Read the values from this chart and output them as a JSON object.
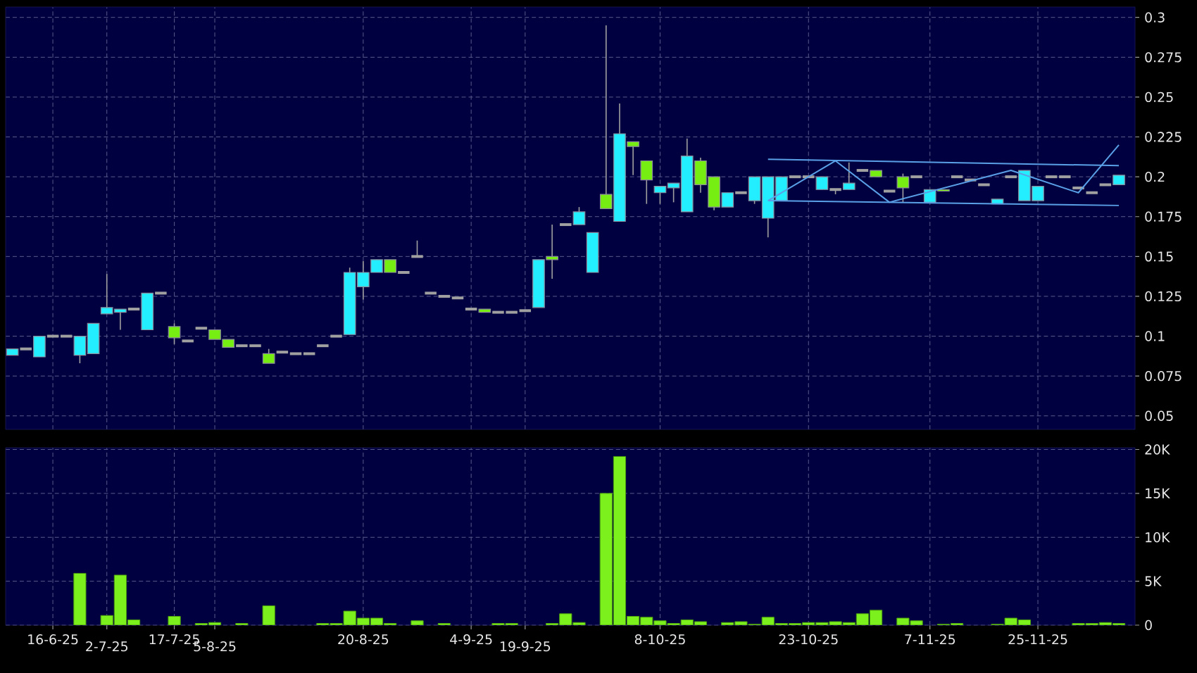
{
  "chart_data": [
    {
      "type": "candlestick",
      "categories": [
        null,
        null,
        null,
        null,
        null,
        null,
        null,
        null,
        null,
        null,
        null,
        null,
        null,
        null,
        null,
        null,
        null,
        null,
        null,
        null,
        null,
        null,
        null,
        null,
        null,
        null,
        null,
        null,
        null,
        null,
        null,
        null,
        null,
        null,
        null,
        null,
        null,
        null,
        null,
        null,
        null,
        null,
        null,
        null,
        null,
        null,
        null,
        null,
        null,
        null,
        null,
        null,
        null,
        null,
        null,
        null,
        null,
        null,
        null,
        null,
        null,
        null,
        null,
        null,
        null,
        null,
        null,
        null,
        null,
        null,
        null,
        null,
        null,
        null,
        null,
        null,
        null,
        null,
        null,
        null,
        null,
        null,
        null
      ],
      "ohlc": [
        [
          0.088,
          0.092,
          0.088,
          0.092
        ],
        [
          0.092,
          0.092,
          0.092,
          0.092
        ],
        [
          0.087,
          0.1,
          0.087,
          0.1
        ],
        [
          0.1,
          0.1,
          0.1,
          0.1
        ],
        [
          0.1,
          0.1,
          0.1,
          0.1
        ],
        [
          0.088,
          0.1,
          0.083,
          0.1
        ],
        [
          0.089,
          0.108,
          0.089,
          0.108
        ],
        [
          0.114,
          0.139,
          0.114,
          0.118
        ],
        [
          0.115,
          0.117,
          0.104,
          0.117
        ],
        [
          0.117,
          0.117,
          0.117,
          0.117
        ],
        [
          0.104,
          0.127,
          0.104,
          0.127
        ],
        [
          0.127,
          0.127,
          0.127,
          0.127
        ],
        [
          0.106,
          0.108,
          0.095,
          0.099
        ],
        [
          0.097,
          0.097,
          0.097,
          0.097
        ],
        [
          0.105,
          0.105,
          0.105,
          0.105
        ],
        [
          0.104,
          0.104,
          0.098,
          0.098
        ],
        [
          0.098,
          0.098,
          0.093,
          0.093
        ],
        [
          0.094,
          0.094,
          0.094,
          0.094
        ],
        [
          0.094,
          0.094,
          0.094,
          0.094
        ],
        [
          0.089,
          0.092,
          0.083,
          0.083
        ],
        [
          0.09,
          0.09,
          0.09,
          0.09
        ],
        [
          0.089,
          0.089,
          0.089,
          0.089
        ],
        [
          0.089,
          0.089,
          0.089,
          0.089
        ],
        [
          0.094,
          0.094,
          0.094,
          0.094
        ],
        [
          0.1,
          0.1,
          0.1,
          0.1
        ],
        [
          0.101,
          0.143,
          0.101,
          0.14
        ],
        [
          0.131,
          0.147,
          0.123,
          0.14
        ],
        [
          0.14,
          0.148,
          0.14,
          0.148
        ],
        [
          0.148,
          0.148,
          0.14,
          0.14
        ],
        [
          0.14,
          0.14,
          0.14,
          0.14
        ],
        [
          0.15,
          0.16,
          0.15,
          0.15
        ],
        [
          0.127,
          0.127,
          0.127,
          0.127
        ],
        [
          0.125,
          0.125,
          0.125,
          0.125
        ],
        [
          0.124,
          0.124,
          0.124,
          0.124
        ],
        [
          0.117,
          0.117,
          0.117,
          0.117
        ],
        [
          0.117,
          0.117,
          0.115,
          0.115
        ],
        [
          0.115,
          0.115,
          0.115,
          0.115
        ],
        [
          0.115,
          0.115,
          0.115,
          0.115
        ],
        [
          0.116,
          0.116,
          0.116,
          0.116
        ],
        [
          0.118,
          0.148,
          0.118,
          0.148
        ],
        [
          0.15,
          0.17,
          0.136,
          0.148
        ],
        [
          0.17,
          0.17,
          0.17,
          0.17
        ],
        [
          0.17,
          0.181,
          0.17,
          0.178
        ],
        [
          0.14,
          0.165,
          0.14,
          0.165
        ],
        [
          0.189,
          0.295,
          0.18,
          0.18
        ],
        [
          0.172,
          0.246,
          0.172,
          0.227
        ],
        [
          0.222,
          0.222,
          0.201,
          0.219
        ],
        [
          0.21,
          0.21,
          0.183,
          0.198
        ],
        [
          0.19,
          0.194,
          0.183,
          0.194
        ],
        [
          0.193,
          0.196,
          0.184,
          0.196
        ],
        [
          0.178,
          0.224,
          0.178,
          0.213
        ],
        [
          0.21,
          0.212,
          0.19,
          0.195
        ],
        [
          0.2,
          0.2,
          0.179,
          0.181
        ],
        [
          0.181,
          0.19,
          0.181,
          0.19
        ],
        [
          0.19,
          0.19,
          0.19,
          0.19
        ],
        [
          0.185,
          0.2,
          0.183,
          0.2
        ],
        [
          0.174,
          0.2,
          0.162,
          0.2
        ],
        [
          0.185,
          0.2,
          0.185,
          0.2
        ],
        [
          0.2,
          0.2,
          0.2,
          0.2
        ],
        [
          0.2,
          0.2,
          0.2,
          0.2
        ],
        [
          0.192,
          0.2,
          0.192,
          0.2
        ],
        [
          0.192,
          0.192,
          0.189,
          0.192
        ],
        [
          0.192,
          0.209,
          0.192,
          0.196
        ],
        [
          0.204,
          0.204,
          0.204,
          0.204
        ],
        [
          0.204,
          0.204,
          0.2,
          0.2
        ],
        [
          0.191,
          0.191,
          0.191,
          0.191
        ],
        [
          0.2,
          0.202,
          0.184,
          0.193
        ],
        [
          0.2,
          0.2,
          0.2,
          0.2
        ],
        [
          0.184,
          0.192,
          0.184,
          0.192
        ],
        [
          0.192,
          0.192,
          0.191,
          0.191
        ],
        [
          0.2,
          0.2,
          0.2,
          0.2
        ],
        [
          0.198,
          0.198,
          0.198,
          0.198
        ],
        [
          0.195,
          0.195,
          0.195,
          0.195
        ],
        [
          0.183,
          0.186,
          0.183,
          0.186
        ],
        [
          0.2,
          0.2,
          0.2,
          0.2
        ],
        [
          0.185,
          0.204,
          0.185,
          0.204
        ],
        [
          0.185,
          0.194,
          0.185,
          0.194
        ],
        [
          0.2,
          0.2,
          0.2,
          0.2
        ],
        [
          0.2,
          0.2,
          0.2,
          0.2
        ],
        [
          0.193,
          0.193,
          0.193,
          0.193
        ],
        [
          0.19,
          0.19,
          0.19,
          0.19
        ],
        [
          0.195,
          0.195,
          0.195,
          0.195
        ],
        [
          0.195,
          0.201,
          0.195,
          0.201
        ]
      ],
      "colors": [
        "#22eeff",
        "#a0a0a0",
        "#22eeff",
        "#a0a0a0",
        "#a0a0a0",
        "#22eeff",
        "#22eeff",
        "#22eeff",
        "#22eeff",
        "#a0a0a0",
        "#22eeff",
        "#a0a0a0",
        "#77ee11",
        "#a0a0a0",
        "#a0a0a0",
        "#77ee11",
        "#77ee11",
        "#a0a0a0",
        "#a0a0a0",
        "#77ee11",
        "#a0a0a0",
        "#a0a0a0",
        "#a0a0a0",
        "#a0a0a0",
        "#a0a0a0",
        "#22eeff",
        "#22eeff",
        "#22eeff",
        "#77ee11",
        "#a0a0a0",
        "#a0a0a0",
        "#a0a0a0",
        "#a0a0a0",
        "#a0a0a0",
        "#a0a0a0",
        "#77ee11",
        "#a0a0a0",
        "#a0a0a0",
        "#a0a0a0",
        "#22eeff",
        "#77ee11",
        "#a0a0a0",
        "#22eeff",
        "#22eeff",
        "#77ee11",
        "#22eeff",
        "#77ee11",
        "#77ee11",
        "#22eeff",
        "#22eeff",
        "#22eeff",
        "#77ee11",
        "#77ee11",
        "#22eeff",
        "#a0a0a0",
        "#22eeff",
        "#22eeff",
        "#22eeff",
        "#a0a0a0",
        "#a0a0a0",
        "#22eeff",
        "#a0a0a0",
        "#22eeff",
        "#a0a0a0",
        "#77ee11",
        "#a0a0a0",
        "#77ee11",
        "#a0a0a0",
        "#22eeff",
        "#77ee11",
        "#a0a0a0",
        "#a0a0a0",
        "#a0a0a0",
        "#22eeff",
        "#a0a0a0",
        "#22eeff",
        "#22eeff",
        "#a0a0a0",
        "#a0a0a0",
        "#a0a0a0",
        "#a0a0a0",
        "#a0a0a0",
        "#22eeff"
      ],
      "series": [
        {
          "type": "line",
          "color": "#5aa0e6",
          "values": [
            null,
            null,
            null,
            null,
            null,
            null,
            null,
            null,
            null,
            null,
            null,
            null,
            null,
            null,
            null,
            null,
            null,
            null,
            null,
            null,
            null,
            null,
            null,
            null,
            null,
            null,
            null,
            null,
            null,
            null,
            null,
            null,
            null,
            null,
            null,
            null,
            null,
            null,
            null,
            null,
            null,
            null,
            null,
            null,
            null,
            null,
            null,
            null,
            null,
            null,
            null,
            null,
            null,
            null,
            null,
            null,
            0.211,
            null,
            null,
            null,
            null,
            null,
            null,
            null,
            null,
            null,
            null,
            null,
            null,
            null,
            null,
            null,
            null,
            null,
            null,
            null,
            null,
            null,
            null,
            null,
            null,
            null,
            0.207
          ]
        },
        {
          "type": "line",
          "color": "#5aa0e6",
          "values": [
            null,
            null,
            null,
            null,
            null,
            null,
            null,
            null,
            null,
            null,
            null,
            null,
            null,
            null,
            null,
            null,
            null,
            null,
            null,
            null,
            null,
            null,
            null,
            null,
            null,
            null,
            null,
            null,
            null,
            null,
            null,
            null,
            null,
            null,
            null,
            null,
            null,
            null,
            null,
            null,
            null,
            null,
            null,
            null,
            null,
            null,
            null,
            null,
            null,
            null,
            null,
            null,
            null,
            null,
            null,
            null,
            0.185,
            null,
            null,
            null,
            null,
            null,
            null,
            null,
            null,
            null,
            null,
            null,
            null,
            null,
            null,
            null,
            null,
            null,
            null,
            null,
            null,
            null,
            null,
            null,
            null,
            null,
            0.182
          ]
        },
        {
          "type": "line",
          "color": "#5aa0e6",
          "values": [
            null,
            null,
            null,
            null,
            null,
            null,
            null,
            null,
            null,
            null,
            null,
            null,
            null,
            null,
            null,
            null,
            null,
            null,
            null,
            null,
            null,
            null,
            null,
            null,
            null,
            null,
            null,
            null,
            null,
            null,
            null,
            null,
            null,
            null,
            null,
            null,
            null,
            null,
            null,
            null,
            null,
            null,
            null,
            null,
            null,
            null,
            null,
            null,
            null,
            null,
            null,
            null,
            null,
            null,
            null,
            null,
            0.185,
            null,
            null,
            null,
            null,
            0.21,
            null,
            null,
            null,
            0.184,
            null,
            null,
            null,
            null,
            null,
            null,
            null,
            null,
            0.204,
            null,
            null,
            null,
            null,
            0.19,
            null,
            null,
            0.22
          ]
        }
      ],
      "ylim": [
        0.0415,
        0.3065
      ],
      "yticks": [
        0.05,
        0.075,
        0.1,
        0.125,
        0.15,
        0.175,
        0.2,
        0.225,
        0.25,
        0.275,
        0.3
      ],
      "grid": true,
      "tick_labels": "y"
    },
    {
      "type": "bar",
      "categories": [
        null,
        null,
        null,
        "16-6-25",
        null,
        null,
        null,
        "2-7-25",
        null,
        null,
        null,
        null,
        "17-7-25",
        null,
        null,
        "5-8-25",
        null,
        null,
        null,
        null,
        null,
        null,
        null,
        null,
        null,
        null,
        "20-8-25",
        null,
        null,
        null,
        null,
        null,
        null,
        null,
        "4-9-25",
        null,
        null,
        null,
        "19-9-25",
        null,
        null,
        null,
        null,
        null,
        null,
        null,
        null,
        null,
        "8-10-25",
        null,
        null,
        null,
        null,
        null,
        null,
        null,
        null,
        null,
        null,
        "23-10-25",
        null,
        null,
        null,
        null,
        null,
        null,
        null,
        null,
        "7-11-25",
        null,
        null,
        null,
        null,
        null,
        null,
        null,
        "25-11-25",
        null,
        null,
        null,
        null,
        null,
        null
      ],
      "values": [
        null,
        null,
        null,
        null,
        null,
        5900,
        null,
        1100,
        5700,
        600,
        null,
        null,
        1000,
        null,
        200,
        300,
        null,
        200,
        null,
        2200,
        null,
        null,
        null,
        200,
        200,
        1600,
        800,
        800,
        200,
        null,
        500,
        null,
        200,
        null,
        null,
        null,
        200,
        200,
        null,
        null,
        200,
        1300,
        300,
        null,
        15000,
        19200,
        1000,
        900,
        500,
        200,
        600,
        400,
        null,
        300,
        400,
        100,
        900,
        200,
        200,
        300,
        300,
        400,
        300,
        1300,
        1700,
        null,
        800,
        500,
        null,
        100,
        200,
        null,
        null,
        100,
        800,
        600,
        null,
        null,
        null,
        200,
        200,
        300,
        200
      ],
      "color": "#7cf01c",
      "ylim": [
        0,
        20200
      ],
      "yticks": [
        {
          "value": 0,
          "label": "0"
        },
        {
          "value": 5000,
          "label": "5K"
        },
        {
          "value": 10000,
          "label": "10K"
        },
        {
          "value": 15000,
          "label": "15K"
        },
        {
          "value": 20000,
          "label": "20K"
        }
      ],
      "grid": true
    }
  ]
}
